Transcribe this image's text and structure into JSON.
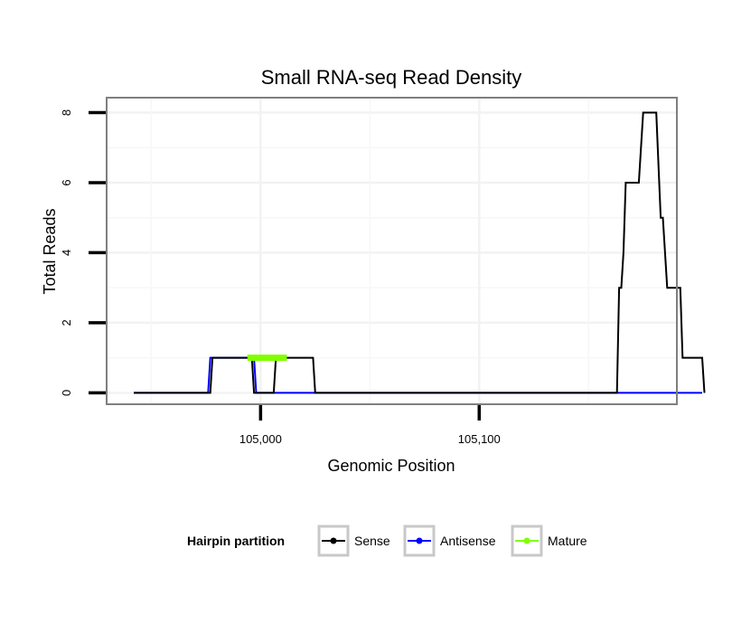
{
  "chart_data": {
    "type": "line",
    "title": "Small RNA-seq Read Density",
    "xlabel": "Genomic Position",
    "ylabel": "Total Reads",
    "xlim": [
      104930,
      105190
    ],
    "ylim": [
      -0.3,
      8.4
    ],
    "xticks": [
      105000,
      105100
    ],
    "xtick_labels": [
      "105,000",
      "105,100"
    ],
    "yticks": [
      0,
      2,
      4,
      6,
      8
    ],
    "ytick_labels": [
      "0",
      "2",
      "4",
      "6",
      "8"
    ],
    "grid": true,
    "legend": {
      "title": "Hairpin partition",
      "position": "bottom",
      "entries": [
        "Sense",
        "Antisense",
        "Mature"
      ]
    },
    "series": [
      {
        "name": "Sense",
        "color": "#000000",
        "points": [
          [
            104942,
            0
          ],
          [
            104977,
            0
          ],
          [
            104978,
            1
          ],
          [
            104996,
            1
          ],
          [
            104997,
            0
          ],
          [
            105006,
            0
          ],
          [
            105007,
            1
          ],
          [
            105024,
            1
          ],
          [
            105025,
            0
          ],
          [
            105163,
            0
          ],
          [
            105164,
            3
          ],
          [
            105165,
            3
          ],
          [
            105166,
            4
          ],
          [
            105167,
            6
          ],
          [
            105173,
            6
          ],
          [
            105175,
            8
          ],
          [
            105181,
            8
          ],
          [
            105183,
            5
          ],
          [
            105184,
            5
          ],
          [
            105186,
            3
          ],
          [
            105192,
            3
          ],
          [
            105193,
            1
          ],
          [
            105202,
            1
          ],
          [
            105203,
            0
          ]
        ]
      },
      {
        "name": "Antisense",
        "color": "#0000ff",
        "points": [
          [
            104942,
            0
          ],
          [
            104976,
            0
          ],
          [
            104977,
            1
          ],
          [
            104997,
            1
          ],
          [
            104998,
            0
          ],
          [
            105202,
            0
          ]
        ]
      },
      {
        "name": "Mature",
        "color": "#80ff00",
        "points": [
          [
            104994,
            1
          ],
          [
            105012,
            1
          ]
        ]
      }
    ]
  }
}
